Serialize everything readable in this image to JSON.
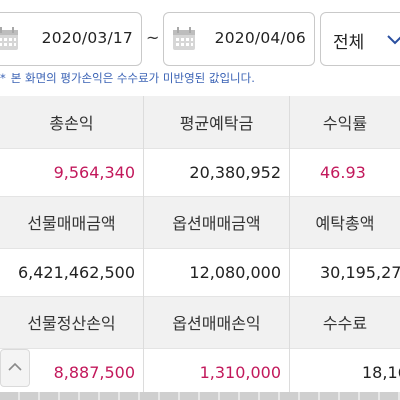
{
  "filter": {
    "start_date": "2020/03/17",
    "separator": "~",
    "end_date": "2020/04/06",
    "range_label": "전체"
  },
  "notice": {
    "star": "*",
    "text": "본 화면의 평가손익은 수수료가 미반영된 값입니다."
  },
  "summary": {
    "rows": [
      {
        "headers": [
          "총손익",
          "평균예탁금",
          "수익률"
        ],
        "values": [
          "9,564,340",
          "20,380,952",
          "46.93"
        ]
      },
      {
        "headers": [
          "선물매매금액",
          "옵션매매금액",
          "예탁총액"
        ],
        "values": [
          "6,421,462,500",
          "12,080,000",
          "30,195,27"
        ]
      },
      {
        "headers": [
          "선물정산손익",
          "옵션매매손익",
          "수수료"
        ],
        "values": [
          "8,887,500",
          "1,310,000",
          "18,16"
        ]
      }
    ]
  },
  "colors": {
    "positive": "#c2185b",
    "notice": "#3b63b5",
    "header_bg": "#f1f1f1",
    "accent_chevron": "#2a4fa0"
  },
  "icons": {
    "start_calendar": "calendar-icon",
    "end_calendar": "calendar-icon",
    "range_dropdown": "chevron-down-icon",
    "scroll_top": "chevron-up-icon"
  }
}
